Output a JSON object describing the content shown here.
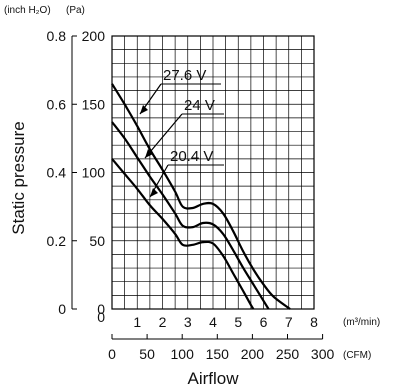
{
  "chart_data": {
    "type": "line",
    "title": "",
    "xlabel": "Airflow",
    "ylabel": "Static pressure",
    "x_unit_primary": "(m³/min)",
    "x_unit_secondary": "(CFM)",
    "y_unit_primary": "(Pa)",
    "y_unit_secondary": "(inch H₂O)",
    "xlim": [
      0,
      8
    ],
    "ylim": [
      0,
      200
    ],
    "grid": true,
    "x_ticks": [
      "1",
      "2",
      "3",
      "4",
      "5",
      "6",
      "7",
      "8"
    ],
    "x_zero_label": "0",
    "cfm_ticks": [
      {
        "label": "0",
        "value": 0
      },
      {
        "label": "50",
        "value": 50
      },
      {
        "label": "100",
        "value": 100
      },
      {
        "label": "150",
        "value": 150
      },
      {
        "label": "200",
        "value": 200
      },
      {
        "label": "250",
        "value": 250
      },
      {
        "label": "300",
        "value": 300
      }
    ],
    "y_ticks": [
      "0",
      "50",
      "100",
      "150",
      "200"
    ],
    "inch_ticks": [
      {
        "label": "0",
        "value": 0
      },
      {
        "label": "0.2",
        "value": 0.2
      },
      {
        "label": "0.4",
        "value": 0.4
      },
      {
        "label": "0.6",
        "value": 0.6
      },
      {
        "label": "0.8",
        "value": 0.8
      }
    ],
    "series": [
      {
        "name": "27.6 V",
        "color": "#000000",
        "points": [
          [
            0,
            165
          ],
          [
            0.5,
            150
          ],
          [
            1,
            134
          ],
          [
            1.5,
            117
          ],
          [
            2,
            102
          ],
          [
            2.5,
            86
          ],
          [
            2.8,
            75
          ],
          [
            3.2,
            74
          ],
          [
            3.6,
            77
          ],
          [
            4.0,
            77
          ],
          [
            4.4,
            70
          ],
          [
            4.8,
            57
          ],
          [
            5.2,
            42
          ],
          [
            5.6,
            29
          ],
          [
            6.0,
            18
          ],
          [
            6.4,
            9
          ],
          [
            7.05,
            0
          ]
        ]
      },
      {
        "name": "24 V",
        "color": "#000000",
        "points": [
          [
            0,
            137
          ],
          [
            0.5,
            125
          ],
          [
            1,
            111
          ],
          [
            1.5,
            97
          ],
          [
            2,
            84
          ],
          [
            2.5,
            70
          ],
          [
            2.8,
            61
          ],
          [
            3.2,
            60
          ],
          [
            3.6,
            63
          ],
          [
            4.0,
            62
          ],
          [
            4.4,
            55
          ],
          [
            4.8,
            43
          ],
          [
            5.2,
            30
          ],
          [
            5.6,
            18
          ],
          [
            6.0,
            6
          ],
          [
            6.2,
            0
          ]
        ]
      },
      {
        "name": "20.4 V",
        "color": "#000000",
        "points": [
          [
            0,
            110
          ],
          [
            0.5,
            99
          ],
          [
            1,
            88
          ],
          [
            1.5,
            76
          ],
          [
            2,
            66
          ],
          [
            2.5,
            55
          ],
          [
            2.8,
            47
          ],
          [
            3.2,
            47
          ],
          [
            3.6,
            49
          ],
          [
            4.0,
            48
          ],
          [
            4.4,
            39
          ],
          [
            4.8,
            26
          ],
          [
            5.2,
            13
          ],
          [
            5.5,
            3
          ],
          [
            5.6,
            0
          ]
        ]
      }
    ],
    "annotations": [
      {
        "text": "27.6 V",
        "series": 0
      },
      {
        "text": "24 V",
        "series": 1
      },
      {
        "text": "20.4 V",
        "series": 2
      }
    ]
  }
}
